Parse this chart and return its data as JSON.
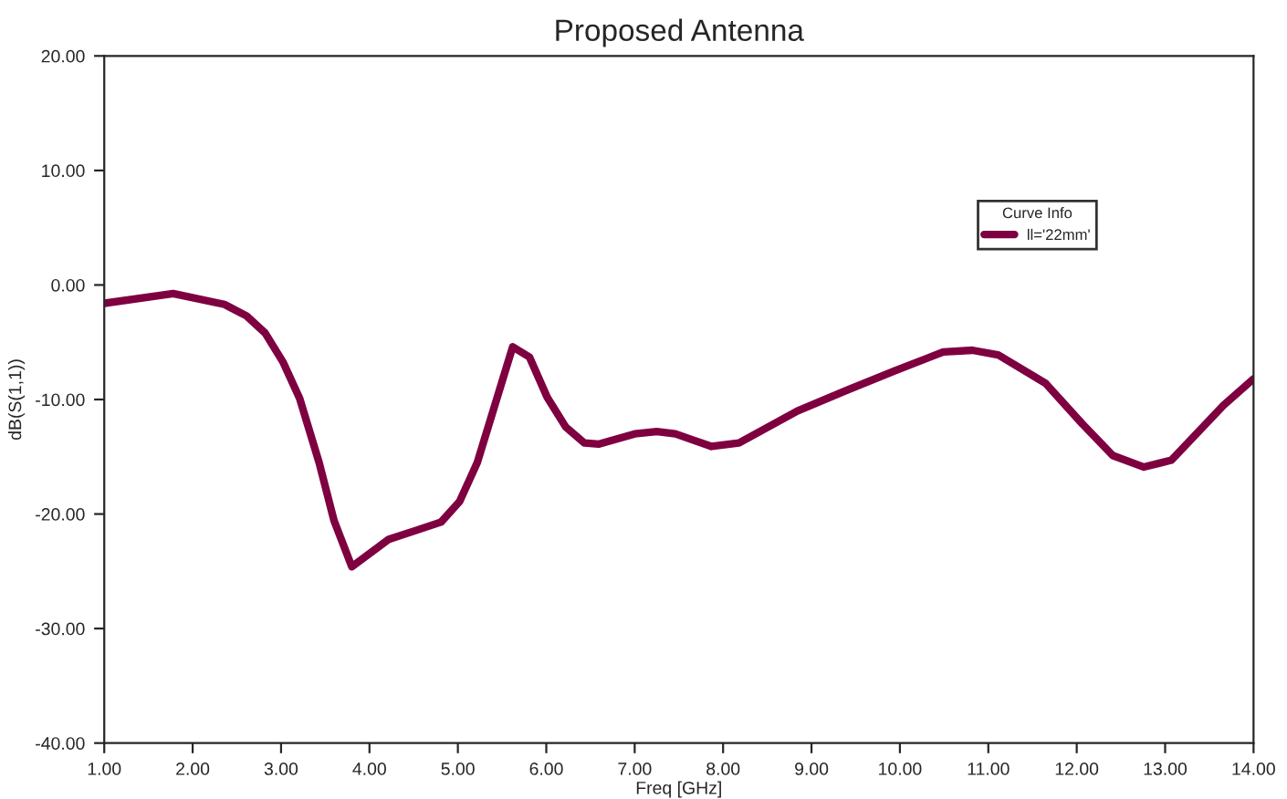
{
  "chart_data": {
    "type": "line",
    "title": "Proposed Antenna",
    "xlabel": "Freq [GHz]",
    "ylabel": "dB(S(1,1))",
    "legend_title": "Curve Info",
    "legend": "top right",
    "grid": false,
    "xlim": [
      1,
      14
    ],
    "xticks": [
      {
        "value": 1,
        "label": "1.00"
      },
      {
        "value": 2,
        "label": "2.00"
      },
      {
        "value": 3,
        "label": "3.00"
      },
      {
        "value": 4,
        "label": "4.00"
      },
      {
        "value": 5,
        "label": "5.00"
      },
      {
        "value": 6,
        "label": "6.00"
      },
      {
        "value": 7,
        "label": "7.00"
      },
      {
        "value": 8,
        "label": "8.00"
      },
      {
        "value": 9,
        "label": "9.00"
      },
      {
        "value": 10,
        "label": "10.00"
      },
      {
        "value": 11,
        "label": "11.00"
      },
      {
        "value": 12,
        "label": "12.00"
      },
      {
        "value": 13,
        "label": "13.00"
      },
      {
        "value": 14,
        "label": "14.00"
      }
    ],
    "ylim": [
      -40,
      20
    ],
    "yticks": [
      {
        "value": -40,
        "label": "-40.00"
      },
      {
        "value": -30,
        "label": "-30.00"
      },
      {
        "value": -20,
        "label": "-20.00"
      },
      {
        "value": -10,
        "label": "-10.00"
      },
      {
        "value": 0,
        "label": "0.00"
      },
      {
        "value": 10,
        "label": "10.00"
      },
      {
        "value": 20,
        "label": "20.00"
      }
    ],
    "x": [
      1.0,
      1.78,
      2.36,
      2.61,
      2.82,
      3.02,
      3.21,
      3.43,
      3.6,
      3.8,
      4.22,
      4.5,
      4.81,
      5.02,
      5.22,
      5.62,
      5.81,
      6.01,
      6.22,
      6.43,
      6.59,
      7.0,
      7.25,
      7.46,
      7.87,
      8.18,
      8.84,
      9.38,
      9.94,
      10.49,
      10.82,
      11.11,
      11.65,
      12.06,
      12.41,
      12.76,
      13.07,
      13.66,
      14.0
    ],
    "series": [
      {
        "name": "ll='22mm'",
        "color": "#7f0040",
        "values": [
          -1.6,
          -0.75,
          -1.7,
          -2.7,
          -4.2,
          -6.7,
          -9.9,
          -15.5,
          -20.6,
          -24.6,
          -22.2,
          -21.5,
          -20.7,
          -18.9,
          -15.5,
          -5.4,
          -6.3,
          -9.8,
          -12.4,
          -13.8,
          -13.9,
          -13.0,
          -12.8,
          -13.0,
          -14.1,
          -13.8,
          -11.0,
          -9.25,
          -7.5,
          -5.85,
          -5.7,
          -6.1,
          -8.6,
          -12.1,
          -14.9,
          -15.9,
          -15.3,
          -10.5,
          -8.2
        ]
      }
    ]
  }
}
